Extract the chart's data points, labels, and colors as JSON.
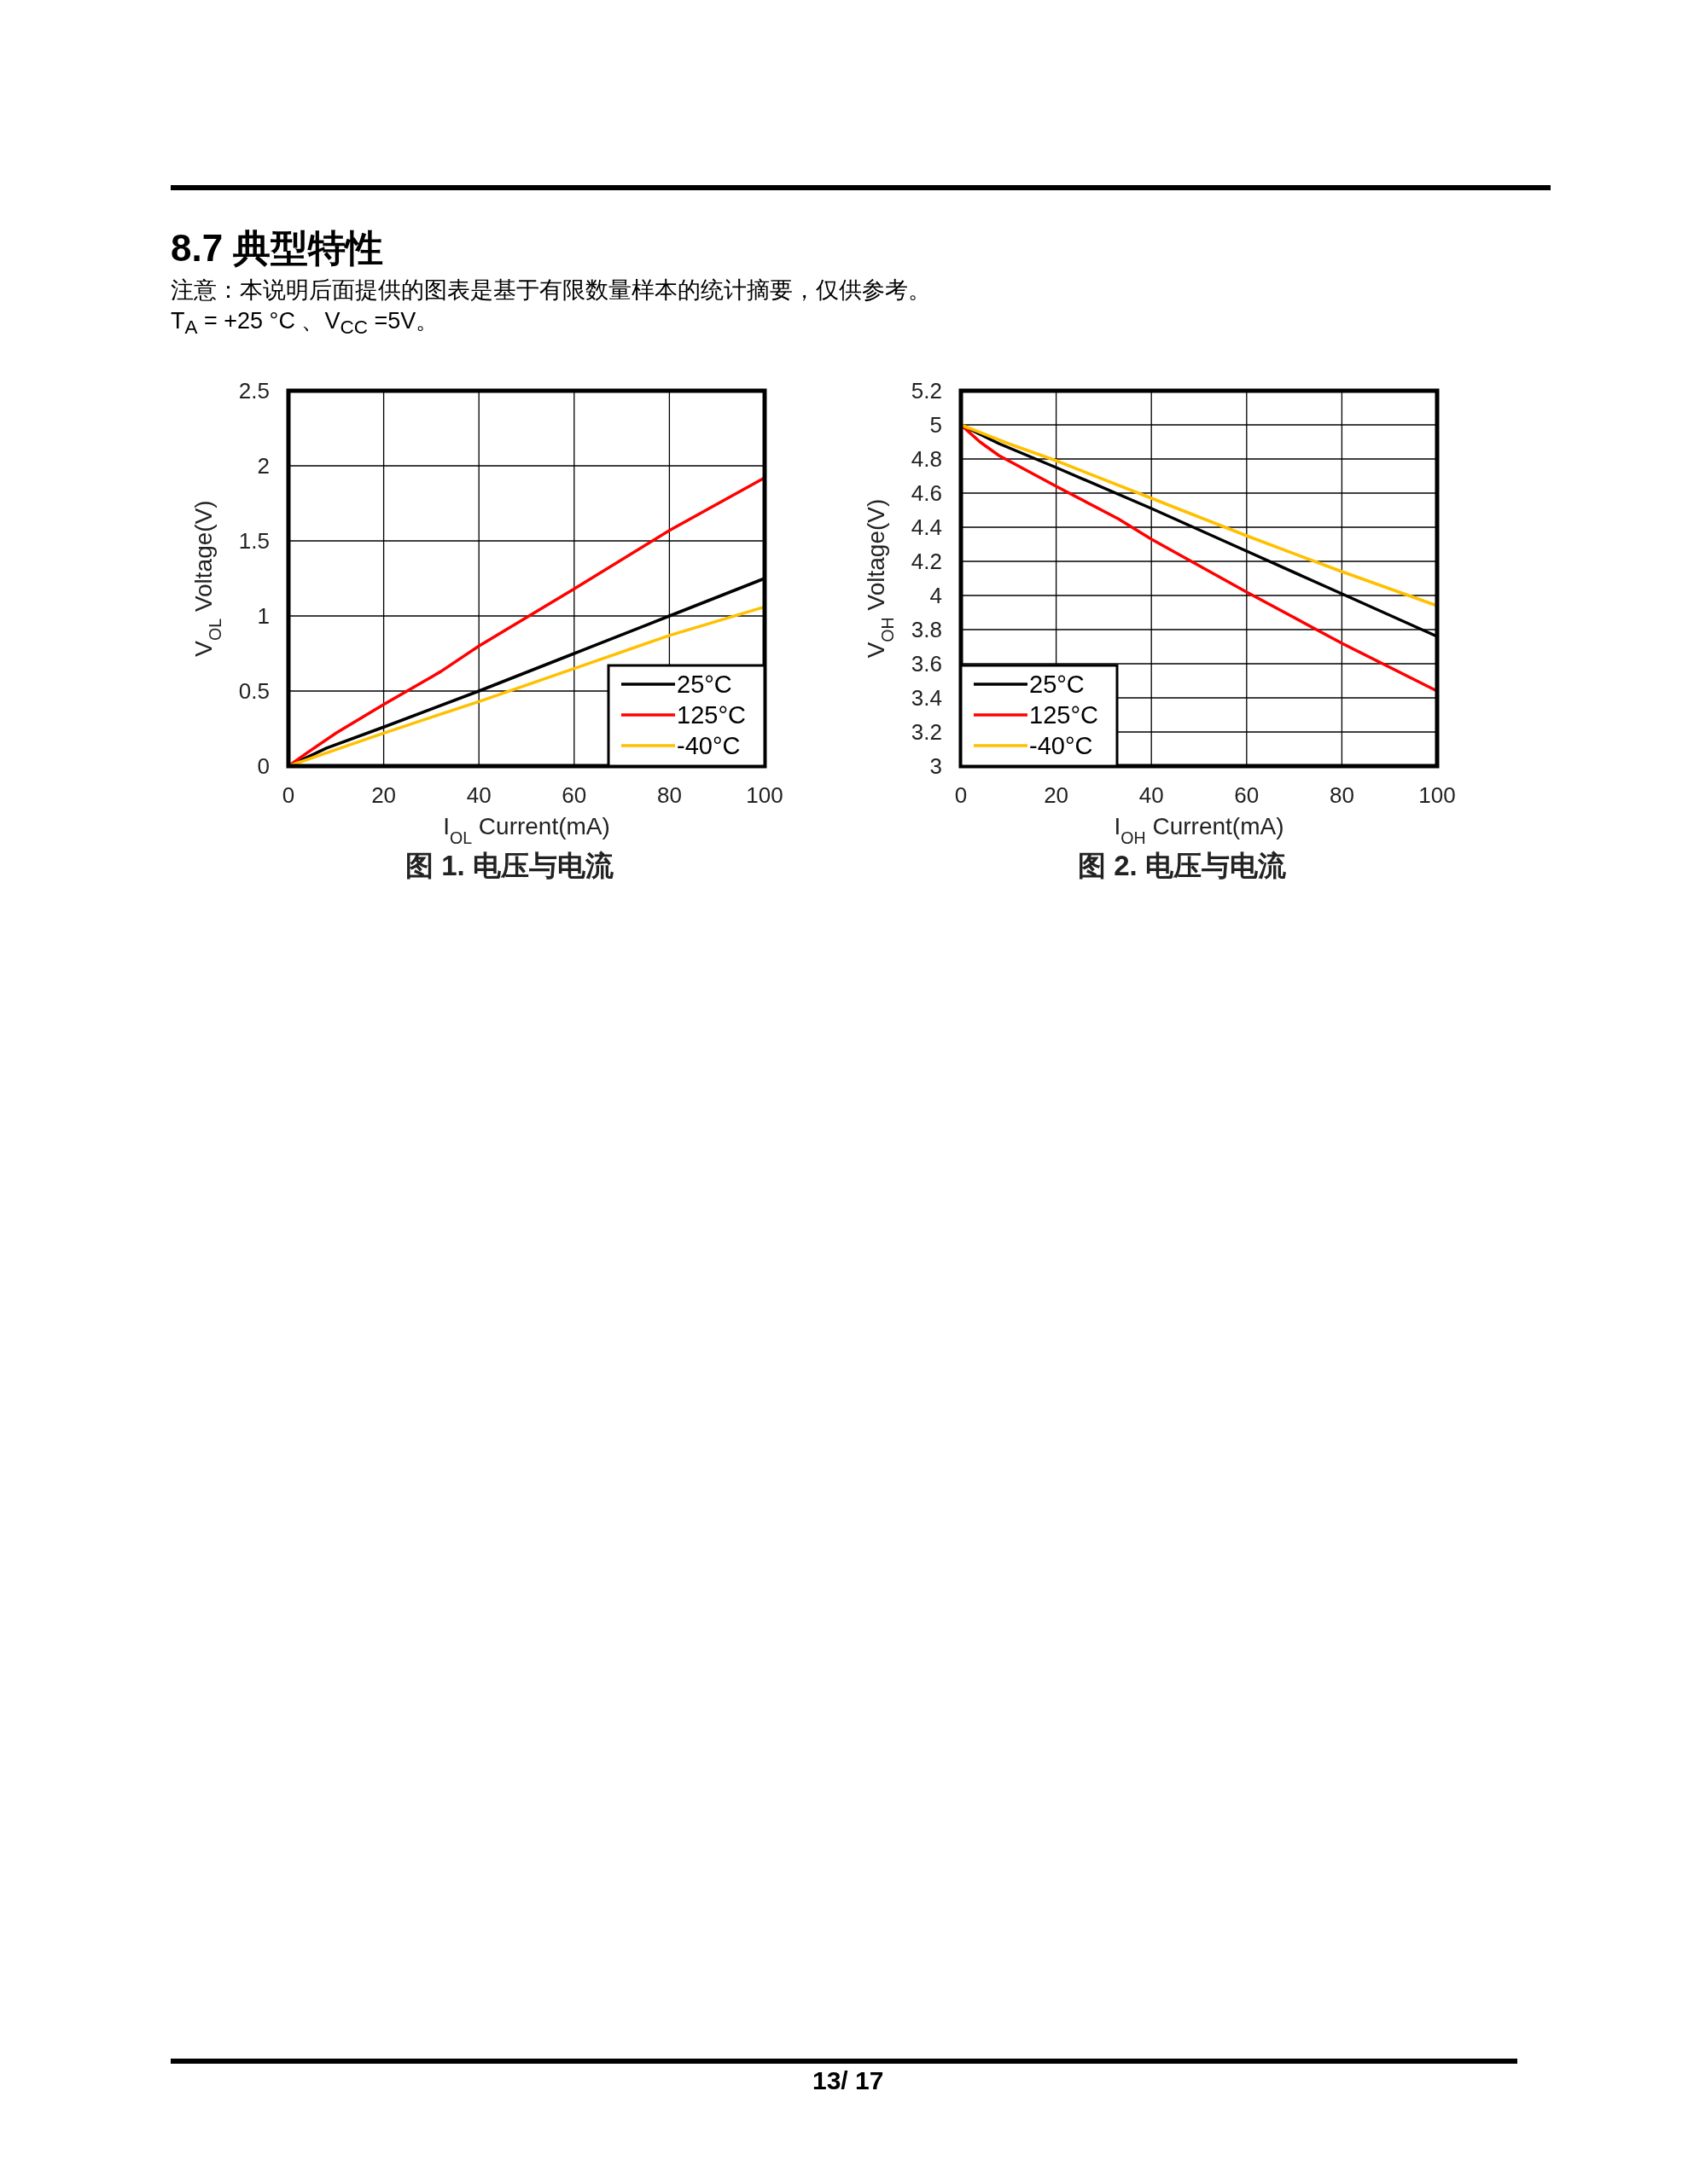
{
  "chart_data": [
    {
      "type": "line",
      "title": "图 1. 电压与电流",
      "xlabel": "I$_{OL}$ Current(mA)",
      "ylabel": "V$_{OL}$ Voltage(V)",
      "xlim": [
        0,
        100
      ],
      "xticks": [
        0,
        20,
        40,
        60,
        80,
        100
      ],
      "ylim": [
        0,
        2.5
      ],
      "yticks": [
        0,
        0.5,
        1,
        1.5,
        2,
        2.5
      ],
      "grid": true,
      "legend": "bottom right",
      "annotations": [
        "8.7 典型特性",
        "注意：本说明后面提供的图表是基于有限数量样本的统计摘要，仅供参考。",
        "T$_{A}$ = +25 °C 、V$_{CC}$ =5V。",
        "13/ 17"
      ],
      "series": [
        {
          "name": "25°C",
          "color": "#000000",
          "x": [
            0,
            8,
            20,
            40,
            60,
            80,
            100
          ],
          "values": [
            0,
            0.12,
            0.26,
            0.5,
            0.75,
            1.0,
            1.25
          ]
        },
        {
          "name": "125°C",
          "color": "#ff0000",
          "x": [
            0,
            4,
            10,
            20,
            32,
            40,
            60,
            80,
            100
          ],
          "values": [
            0,
            0.09,
            0.22,
            0.41,
            0.63,
            0.8,
            1.18,
            1.57,
            1.92
          ]
        },
        {
          "name": "-40°C",
          "color": "#ffc000",
          "x": [
            0,
            10,
            20,
            40,
            60,
            80,
            100
          ],
          "values": [
            0,
            0.11,
            0.22,
            0.43,
            0.65,
            0.87,
            1.06
          ]
        }
      ]
    },
    {
      "type": "line",
      "title": "图 2. 电压与电流",
      "xlabel": "I$_{OH}$ Current(mA)",
      "ylabel": "V$_{OH}$ Voltage(V)",
      "xlim": [
        0,
        100
      ],
      "xticks": [
        0,
        20,
        40,
        60,
        80,
        100
      ],
      "ylim": [
        3,
        5.2
      ],
      "yticks": [
        3,
        3.2,
        3.4,
        3.6,
        3.8,
        4,
        4.2,
        4.4,
        4.6,
        4.8,
        5,
        5.2
      ],
      "grid": true,
      "legend": "bottom left",
      "series": [
        {
          "name": "25°C",
          "color": "#000000",
          "x": [
            0,
            8,
            20,
            40,
            60,
            80,
            100
          ],
          "values": [
            5.0,
            4.89,
            4.75,
            4.51,
            4.26,
            4.01,
            3.76
          ]
        },
        {
          "name": "125°C",
          "color": "#ff0000",
          "x": [
            0,
            4,
            8,
            20,
            33,
            40,
            60,
            80,
            100
          ],
          "values": [
            5.0,
            4.9,
            4.82,
            4.64,
            4.45,
            4.33,
            4.02,
            3.72,
            3.44
          ]
        },
        {
          "name": "-40°C",
          "color": "#ffc000",
          "x": [
            0,
            10,
            20,
            40,
            60,
            80,
            100
          ],
          "values": [
            5.0,
            4.89,
            4.79,
            4.57,
            4.35,
            4.14,
            3.94
          ]
        }
      ]
    }
  ]
}
